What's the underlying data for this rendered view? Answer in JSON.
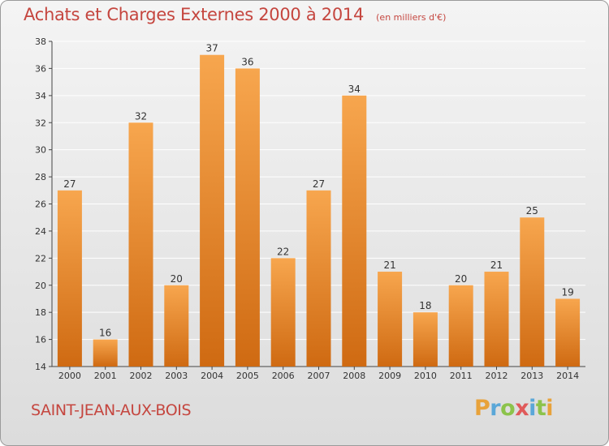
{
  "title": "Achats et Charges Externes 2000 à 2014",
  "subtitle": "(en milliers d'€)",
  "commune": "SAINT-JEAN-AUX-BOIS",
  "logo": {
    "letters": [
      {
        "char": "P",
        "color": "#e8a23a"
      },
      {
        "char": "r",
        "color": "#5aa7d8"
      },
      {
        "char": "o",
        "color": "#8cc34b"
      },
      {
        "char": "x",
        "color": "#e05a5a"
      },
      {
        "char": "i",
        "color": "#5aa7d8"
      },
      {
        "char": "t",
        "color": "#8cc34b"
      },
      {
        "char": "i",
        "color": "#e8a23a"
      }
    ]
  },
  "colors": {
    "bar_top": "#f7a64e",
    "bar_bottom": "#cf6a12",
    "axis": "#444444",
    "grid": "#ffffff"
  },
  "chart_data": {
    "type": "bar",
    "title": "Achats et Charges Externes 2000 à 2014",
    "subtitle": "(en milliers d'€)",
    "xlabel": "",
    "ylabel": "",
    "categories": [
      "2000",
      "2001",
      "2002",
      "2003",
      "2004",
      "2005",
      "2006",
      "2007",
      "2008",
      "2009",
      "2010",
      "2011",
      "2012",
      "2013",
      "2014"
    ],
    "values": [
      27,
      16,
      32,
      20,
      37,
      36,
      22,
      27,
      34,
      21,
      18,
      20,
      21,
      25,
      19
    ],
    "ylim": [
      14,
      38
    ],
    "yticks": [
      14,
      16,
      18,
      20,
      22,
      24,
      26,
      28,
      30,
      32,
      34,
      36,
      38
    ],
    "grid": true,
    "data_labels": true
  }
}
